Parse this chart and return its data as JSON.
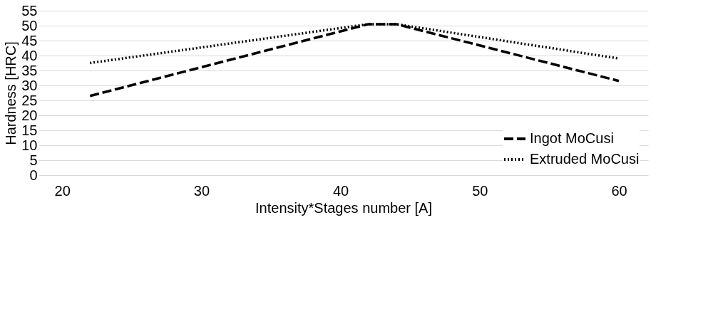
{
  "chart_data": {
    "type": "line",
    "xlabel": "Intensity*Stages number [A]",
    "ylabel": "Hardness [HRC]",
    "xlim": [
      18.3,
      62.1
    ],
    "xticks": [
      20,
      30,
      40,
      50,
      60
    ],
    "ylim": [
      0,
      55
    ],
    "yticks": [
      0,
      5,
      10,
      15,
      20,
      25,
      30,
      35,
      40,
      45,
      50,
      55
    ],
    "grid": "y",
    "legend": "bottom right",
    "marker": "none",
    "series": [
      {
        "name": "Ingot MoCusi",
        "color": "#000000",
        "line_style": "dashed",
        "x": [
          22,
          42,
          44,
          60
        ],
        "values": [
          26.5,
          50.5,
          50.5,
          31.5
        ]
      },
      {
        "name": "Extruded MoCusi",
        "color": "#000000",
        "line_style": "dotted",
        "x": [
          22,
          42,
          44,
          60
        ],
        "values": [
          37.5,
          50.5,
          50.5,
          39
        ]
      }
    ]
  }
}
